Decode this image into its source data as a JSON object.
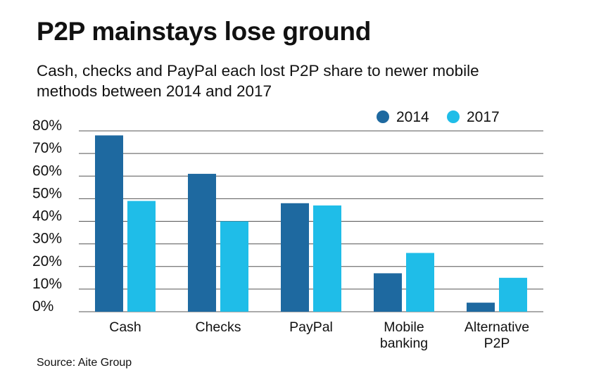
{
  "header": {
    "title": "P2P mainstays lose ground",
    "subtitle": "Cash, checks and PayPal each lost P2P share to newer mobile methods between 2014 and 2017"
  },
  "footer": {
    "source": "Source: Aite Group"
  },
  "colors": {
    "series_2014": "#1e69a0",
    "series_2017": "#1fbde8",
    "grid": "#555555"
  },
  "chart_data": {
    "type": "bar",
    "title": "P2P mainstays lose ground",
    "xlabel": "",
    "ylabel": "",
    "ylim": [
      0,
      80
    ],
    "yticks": [
      "0%",
      "10%",
      "20%",
      "30%",
      "40%",
      "50%",
      "60%",
      "70%",
      "80%"
    ],
    "categories": [
      [
        "Cash"
      ],
      [
        "Checks"
      ],
      [
        "PayPal"
      ],
      [
        "Mobile",
        "banking"
      ],
      [
        "Alternative",
        "P2P"
      ]
    ],
    "series": [
      {
        "name": "2014",
        "values": [
          78,
          61,
          48,
          17,
          4
        ]
      },
      {
        "name": "2017",
        "values": [
          49,
          40,
          47,
          26,
          15
        ]
      }
    ],
    "legend": "top-right"
  }
}
